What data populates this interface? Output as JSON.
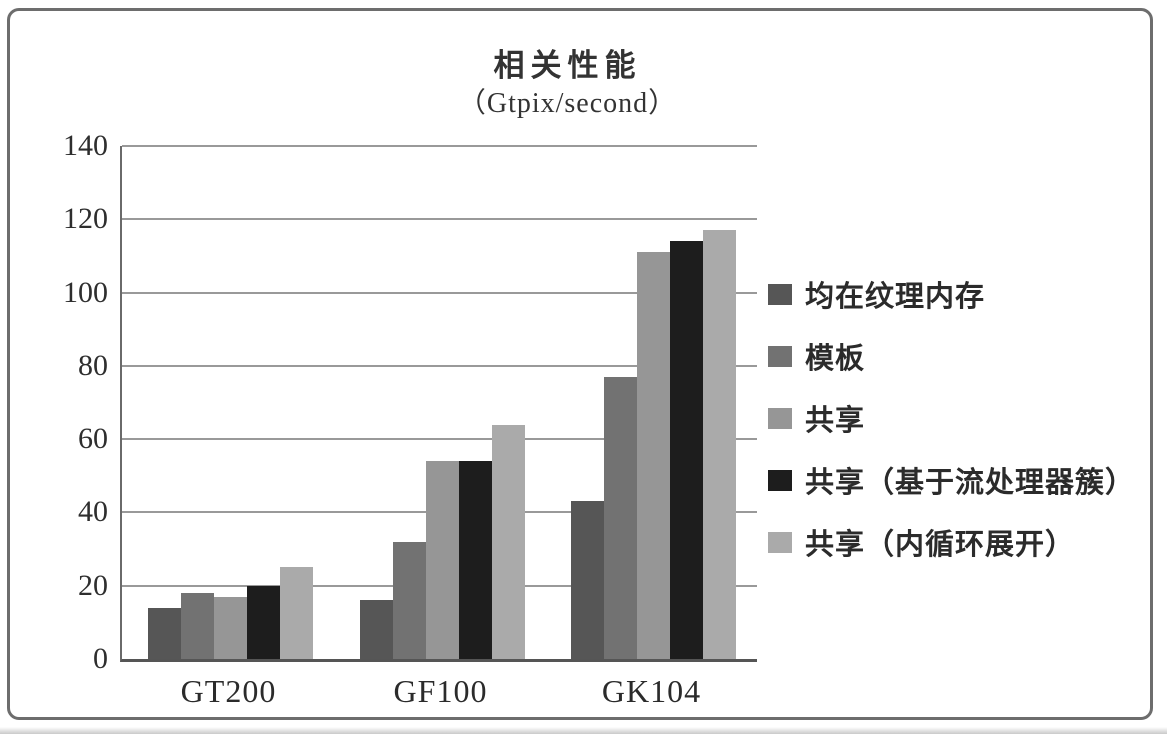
{
  "chart": {
    "title": "相关性能",
    "subtitle": "（Gtpix/second）"
  },
  "chart_data": {
    "type": "bar",
    "title": "相关性能",
    "subtitle": "（Gtpix/second）",
    "xlabel": "",
    "ylabel": "",
    "categories": [
      "GT200",
      "GF100",
      "GK104"
    ],
    "series": [
      {
        "name": "均在纹理内存",
        "color": "#565656",
        "values": [
          14,
          16,
          43
        ]
      },
      {
        "name": "模板",
        "color": "#727272",
        "values": [
          18,
          32,
          77
        ]
      },
      {
        "name": "共享",
        "color": "#969696",
        "values": [
          17,
          54,
          111
        ]
      },
      {
        "name": "共享（基于流处理器簇）",
        "color": "#1d1d1d",
        "values": [
          20,
          54,
          114
        ]
      },
      {
        "name": "共享（内循环展开）",
        "color": "#aaaaaa",
        "values": [
          25,
          64,
          117
        ]
      }
    ],
    "ylim": [
      0,
      140
    ],
    "yticks": [
      0,
      20,
      40,
      60,
      80,
      100,
      120,
      140
    ],
    "grid": true,
    "legend_position": "right"
  }
}
